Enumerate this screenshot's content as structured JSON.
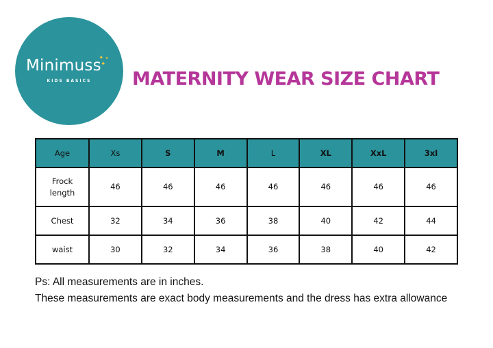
{
  "logo": {
    "name": "Minimuss",
    "tagline": "KIDS BASICS",
    "stars": "✦ ✦\n ✦",
    "bg_color": "#2b939c",
    "star_color": "#f4c93b"
  },
  "title": "MATERNITY WEAR SIZE CHART",
  "title_color": "#b5379a",
  "table": {
    "header_color": "#2b939c",
    "header": [
      "Age",
      "Xs",
      "S",
      "M",
      "L",
      "XL",
      "XxL",
      "3xl"
    ],
    "rows": [
      {
        "label": "Frock length",
        "values": [
          "46",
          "46",
          "46",
          "46",
          "46",
          "46",
          "46"
        ]
      },
      {
        "label": "Chest",
        "values": [
          "32",
          "34",
          "36",
          "38",
          "40",
          "42",
          "44"
        ]
      },
      {
        "label": "waist",
        "values": [
          "30",
          "32",
          "34",
          "36",
          "38",
          "40",
          "42"
        ]
      }
    ]
  },
  "notes": {
    "line1": "Ps: All measurements are in inches.",
    "line2": "These measurements are exact body measurements and the dress has extra allowance"
  }
}
